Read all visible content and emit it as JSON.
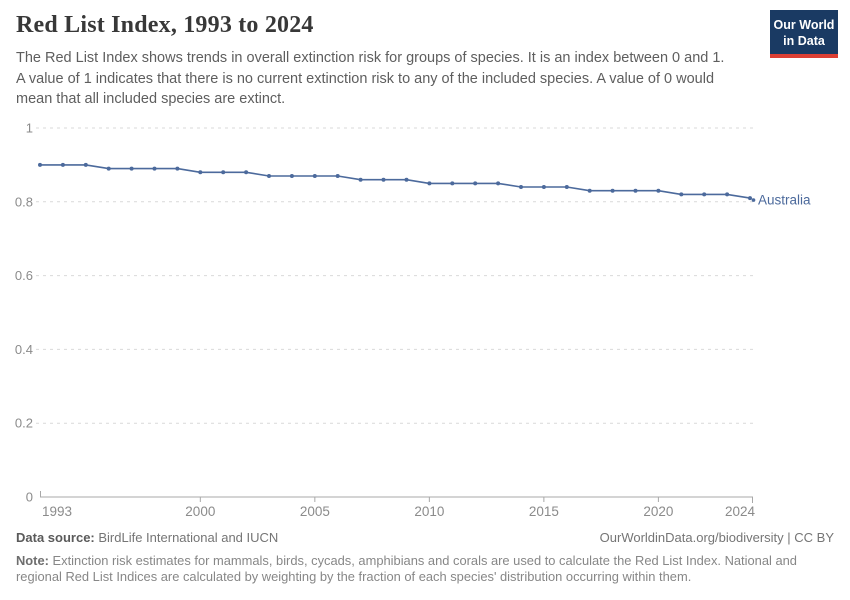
{
  "header": {
    "title": "Red List Index, 1993 to 2024",
    "subtitle": "The Red List Index shows trends in overall extinction risk for groups of species. It is an index between 0 and 1.\nA value of 1 indicates that there is no current extinction risk to any of the included species. A value of 0 would\nmean that all included species are extinct.",
    "logo_line1": "Our World",
    "logo_line2": "in Data"
  },
  "colors": {
    "series": "#4C6A9C",
    "gridline": "#d9d9d9",
    "axis": "#a8a8a8",
    "tick_label": "#8b8b8b",
    "logo_bg": "#1a3a63",
    "logo_accent": "#dc3f34"
  },
  "chart_data": {
    "type": "line",
    "title": "Red List Index, 1993 to 2024",
    "xlabel": "",
    "ylabel": "",
    "ylim": [
      0,
      1
    ],
    "yticks": [
      0,
      0.2,
      0.4,
      0.6,
      0.8,
      1
    ],
    "xticks": [
      1993,
      2000,
      2005,
      2010,
      2015,
      2020,
      2024
    ],
    "grid": "horizontal-dashed",
    "legend_position": "end-of-line-label",
    "x": [
      1993,
      1994,
      1995,
      1996,
      1997,
      1998,
      1999,
      2000,
      2001,
      2002,
      2003,
      2004,
      2005,
      2006,
      2007,
      2008,
      2009,
      2010,
      2011,
      2012,
      2013,
      2014,
      2015,
      2016,
      2017,
      2018,
      2019,
      2020,
      2021,
      2022,
      2023,
      2024
    ],
    "series": [
      {
        "name": "Australia",
        "values": [
          0.9,
          0.9,
          0.9,
          0.89,
          0.89,
          0.89,
          0.89,
          0.88,
          0.88,
          0.88,
          0.87,
          0.87,
          0.87,
          0.87,
          0.86,
          0.86,
          0.86,
          0.85,
          0.85,
          0.85,
          0.85,
          0.84,
          0.84,
          0.84,
          0.83,
          0.83,
          0.83,
          0.83,
          0.82,
          0.82,
          0.82,
          0.81
        ]
      }
    ]
  },
  "footer": {
    "datasource_label": "Data source:",
    "datasource_text": " BirdLife International and IUCN",
    "link_text": "OurWorldinData.org/biodiversity | CC BY",
    "note_label": "Note:",
    "note_text": " Extinction risk estimates for mammals, birds, cycads, amphibians and corals are used to calculate the Red List Index. National and\nregional Red List Indices are calculated by weighting by the fraction of each species' distribution occurring within them."
  }
}
